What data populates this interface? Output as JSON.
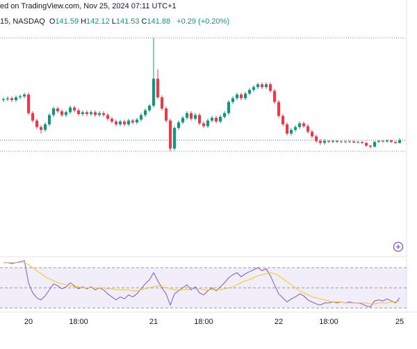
{
  "header": "ed on TradingView.com, Nov 25, 2024 07:11 UTC+1",
  "legend": {
    "symbol": "15, NASDAQ",
    "ohlc": [
      {
        "label": "O",
        "value": 141.59
      },
      {
        "label": "H",
        "value": 142.12
      },
      {
        "label": "L",
        "value": 141.53
      },
      {
        "label": "C",
        "value": 141.88
      }
    ],
    "change": "+0.29 (+0.20%)",
    "value_color": "#089981"
  },
  "chart_data": [
    {
      "type": "candlestick",
      "categories": [
        null,
        null,
        null,
        null,
        null,
        null,
        "20",
        null,
        null,
        null,
        null,
        null,
        null,
        null,
        null,
        null,
        null,
        null,
        "18:00",
        null,
        null,
        null,
        null,
        null,
        null,
        null,
        null,
        null,
        null,
        null,
        null,
        null,
        null,
        null,
        null,
        null,
        "21",
        null,
        null,
        null,
        null,
        null,
        null,
        null,
        null,
        null,
        null,
        null,
        "18:00",
        null,
        null,
        null,
        null,
        null,
        null,
        null,
        null,
        null,
        null,
        null,
        null,
        null,
        null,
        null,
        null,
        null,
        "22",
        null,
        null,
        null,
        null,
        null,
        null,
        null,
        null,
        null,
        null,
        null,
        "18:00",
        null,
        null,
        null,
        null,
        null,
        null,
        null,
        null,
        null,
        null,
        null,
        null,
        null,
        null,
        null,
        null,
        "25"
      ],
      "open": [
        146.2,
        146.3,
        146.4,
        146.2,
        146.5,
        146.6,
        146.8,
        144.8,
        144.0,
        143.3,
        143.0,
        143.6,
        144.6,
        145.3,
        145.0,
        144.6,
        144.9,
        145.4,
        145.1,
        144.7,
        144.9,
        144.7,
        144.9,
        144.6,
        144.8,
        144.6,
        144.2,
        143.9,
        143.6,
        143.9,
        143.6,
        144.0,
        143.8,
        144.1,
        144.6,
        145.1,
        145.6,
        148.5,
        146.5,
        145.3,
        144.0,
        141.0,
        143.2,
        143.8,
        144.3,
        144.8,
        144.2,
        144.6,
        143.7,
        143.4,
        144.0,
        144.3,
        143.9,
        144.4,
        144.8,
        146.0,
        146.4,
        146.8,
        146.4,
        146.9,
        147.3,
        147.6,
        147.9,
        147.6,
        147.9,
        147.2,
        146.0,
        144.5,
        143.6,
        142.6,
        143.0,
        143.3,
        143.7,
        143.4,
        142.8,
        142.3,
        141.8,
        141.6,
        141.8,
        141.7,
        141.8,
        141.7,
        141.75,
        141.7,
        141.75,
        141.65,
        141.7,
        141.6,
        141.3,
        141.2,
        141.7,
        141.8,
        141.75,
        141.85,
        141.7,
        141.59
      ],
      "high": [
        146.5,
        146.6,
        146.6,
        146.7,
        146.8,
        147.0,
        147.0,
        145.0,
        144.2,
        143.5,
        143.8,
        144.8,
        145.5,
        145.5,
        145.2,
        145.1,
        145.6,
        145.6,
        145.3,
        145.1,
        145.1,
        145.1,
        145.1,
        145.0,
        145.0,
        144.8,
        144.4,
        144.1,
        144.1,
        144.1,
        144.2,
        144.2,
        144.3,
        144.8,
        145.3,
        145.8,
        152.89,
        149.5,
        146.7,
        145.5,
        144.2,
        143.4,
        144.0,
        144.5,
        145.0,
        145.0,
        144.8,
        144.8,
        143.9,
        144.2,
        144.5,
        144.5,
        144.6,
        145.0,
        146.2,
        146.6,
        147.0,
        147.0,
        147.1,
        147.5,
        147.8,
        148.1,
        148.1,
        148.1,
        148.1,
        147.4,
        146.2,
        144.7,
        143.8,
        143.2,
        143.5,
        143.9,
        143.9,
        143.6,
        143.0,
        142.5,
        142.0,
        142.0,
        141.9,
        141.9,
        141.9,
        141.85,
        141.85,
        141.85,
        141.85,
        141.8,
        141.8,
        141.7,
        141.4,
        141.8,
        141.9,
        141.9,
        141.95,
        141.95,
        141.8,
        142.12
      ],
      "low": [
        146.0,
        146.1,
        146.0,
        146.0,
        146.3,
        146.4,
        144.6,
        143.8,
        143.1,
        142.6,
        142.8,
        143.4,
        144.4,
        144.8,
        144.4,
        144.4,
        144.7,
        144.9,
        144.5,
        144.5,
        144.5,
        144.5,
        144.4,
        144.4,
        144.4,
        144.0,
        143.7,
        143.4,
        143.4,
        143.4,
        143.4,
        143.6,
        143.6,
        143.9,
        144.4,
        144.9,
        145.4,
        146.3,
        145.1,
        143.8,
        140.7,
        140.8,
        143.0,
        143.6,
        144.1,
        144.0,
        144.0,
        143.5,
        143.2,
        143.2,
        143.8,
        143.7,
        143.7,
        144.2,
        144.6,
        145.8,
        146.2,
        146.2,
        146.2,
        146.7,
        147.1,
        147.4,
        147.4,
        147.4,
        147.0,
        145.8,
        144.3,
        143.4,
        142.4,
        142.4,
        142.8,
        143.1,
        143.2,
        142.6,
        142.1,
        141.6,
        141.4,
        141.4,
        141.6,
        141.6,
        141.6,
        141.6,
        141.6,
        141.6,
        141.55,
        141.55,
        141.5,
        141.2,
        141.0,
        141.1,
        141.6,
        141.65,
        141.65,
        141.6,
        141.5,
        141.53
      ],
      "close": [
        146.3,
        146.4,
        146.2,
        146.5,
        146.6,
        146.8,
        144.8,
        144.0,
        143.3,
        143.0,
        143.6,
        144.6,
        145.3,
        145.0,
        144.6,
        144.9,
        145.4,
        145.1,
        144.7,
        144.9,
        144.7,
        144.9,
        144.6,
        144.8,
        144.6,
        144.2,
        143.9,
        143.6,
        143.9,
        143.6,
        144.0,
        143.8,
        144.1,
        144.6,
        145.1,
        145.6,
        148.5,
        146.5,
        145.3,
        144.0,
        141.0,
        143.2,
        143.8,
        144.3,
        144.8,
        144.2,
        144.6,
        143.7,
        143.4,
        144.0,
        144.3,
        143.9,
        144.4,
        144.8,
        146.0,
        146.4,
        146.8,
        146.4,
        146.9,
        147.3,
        147.6,
        147.9,
        147.6,
        147.9,
        147.2,
        146.0,
        144.5,
        143.6,
        142.6,
        143.0,
        143.3,
        143.7,
        143.4,
        142.8,
        142.3,
        141.8,
        141.6,
        141.8,
        141.7,
        141.8,
        141.7,
        141.75,
        141.7,
        141.75,
        141.65,
        141.7,
        141.6,
        141.3,
        141.2,
        141.7,
        141.8,
        141.75,
        141.85,
        141.7,
        141.59,
        141.88
      ],
      "up_color": "#089981",
      "down_color": "#f23645",
      "ylim": [
        130.8,
        153.6
      ]
    },
    {
      "type": "line",
      "series": [
        {
          "color": "#7e57c2",
          "values": [
            75,
            75,
            74,
            75,
            76,
            77,
            55,
            45,
            40,
            38,
            42,
            48,
            54,
            52,
            49,
            51,
            55,
            52,
            49,
            51,
            49,
            51,
            48,
            50,
            48,
            44,
            41,
            38,
            41,
            39,
            43,
            41,
            44,
            49,
            54,
            58,
            65,
            57,
            50,
            44,
            33,
            44,
            47,
            50,
            53,
            48,
            51,
            45,
            43,
            47,
            50,
            47,
            51,
            55,
            60,
            63,
            65,
            61,
            64,
            66,
            68,
            70,
            67,
            69,
            62,
            53,
            44,
            40,
            36,
            39,
            41,
            44,
            42,
            38,
            36,
            34,
            33,
            35,
            35,
            36,
            35,
            36,
            35,
            36,
            35,
            35,
            34,
            32,
            31,
            37,
            38,
            37,
            39,
            37,
            35,
            40
          ]
        },
        {
          "color": "#f5c518",
          "values": [
            75,
            75,
            75,
            75,
            75,
            75,
            73,
            70,
            67,
            64,
            61,
            59,
            57,
            55,
            54,
            53,
            52,
            51,
            51,
            50,
            50,
            50,
            50,
            50,
            50,
            49,
            49,
            48,
            48,
            48,
            48,
            47,
            47,
            48,
            49,
            50,
            51,
            52,
            51,
            50,
            49,
            48,
            48,
            48,
            48,
            49,
            49,
            49,
            48,
            48,
            48,
            48,
            48,
            49,
            50,
            51,
            53,
            55,
            57,
            58,
            60,
            62,
            63,
            64,
            65,
            64,
            62,
            59,
            56,
            53,
            50,
            47,
            45,
            43,
            41,
            40,
            39,
            38,
            37,
            36,
            36,
            36,
            35,
            35,
            35,
            35,
            35,
            35,
            34,
            34,
            35,
            35,
            35,
            36,
            36,
            37
          ]
        }
      ],
      "levels": [
        30,
        50,
        70
      ],
      "band_fill": "#7e57c2",
      "ylim": [
        0,
        100
      ]
    }
  ]
}
